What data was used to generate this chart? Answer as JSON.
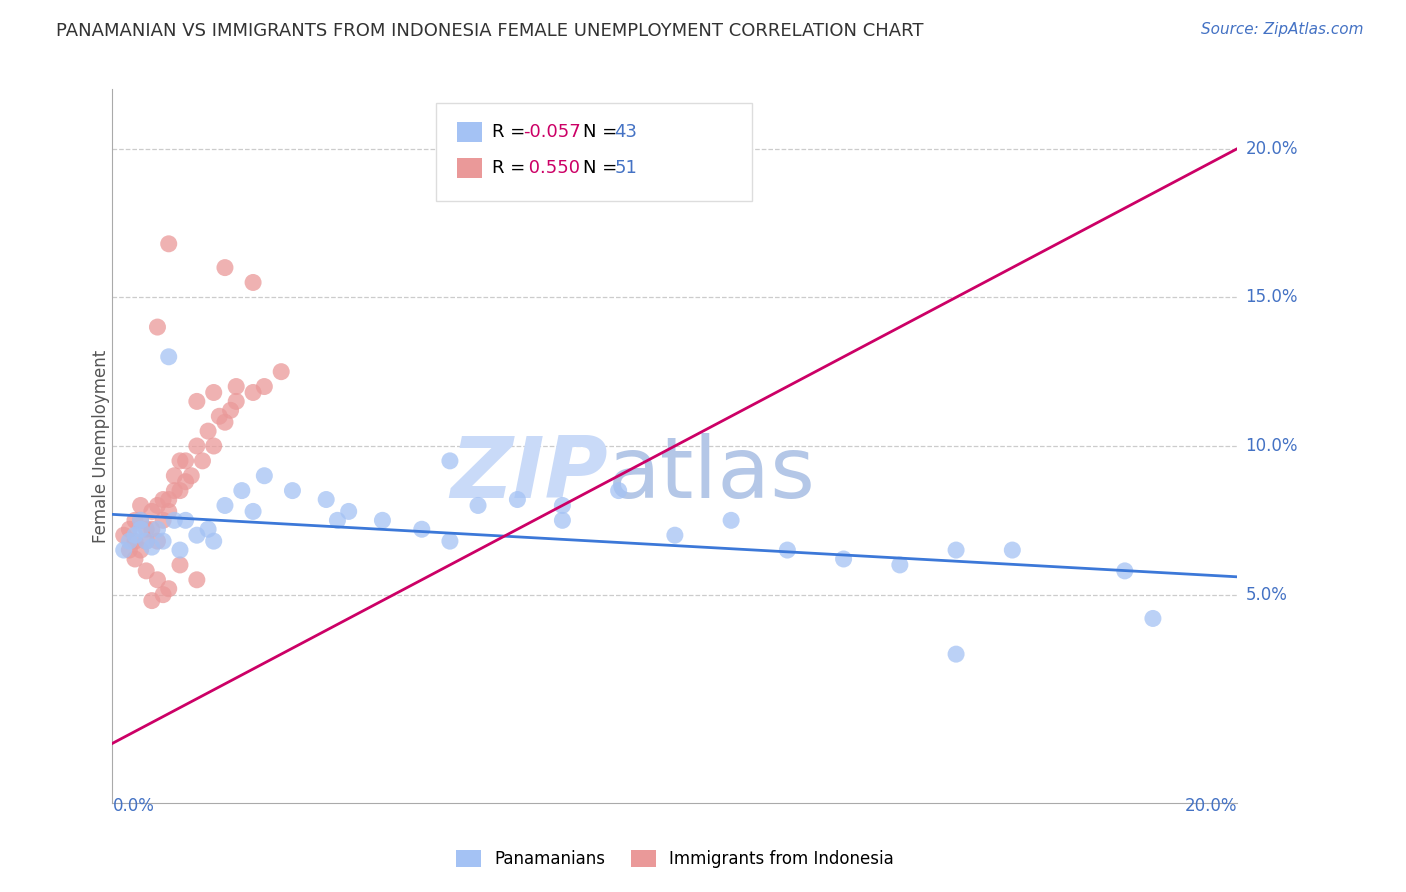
{
  "title": "PANAMANIAN VS IMMIGRANTS FROM INDONESIA FEMALE UNEMPLOYMENT CORRELATION CHART",
  "source": "Source: ZipAtlas.com",
  "ylabel": "Female Unemployment",
  "xlim": [
    0.0,
    0.2
  ],
  "ylim": [
    -0.02,
    0.22
  ],
  "plot_ylim": [
    0.0,
    0.22
  ],
  "y_tick_labels": [
    "5.0%",
    "10.0%",
    "15.0%",
    "20.0%"
  ],
  "y_tick_values": [
    0.05,
    0.1,
    0.15,
    0.2
  ],
  "legend_r_blue": "-0.057",
  "legend_n_blue": "43",
  "legend_r_pink": "0.550",
  "legend_n_pink": "51",
  "blue_color": "#a4c2f4",
  "pink_color": "#ea9999",
  "blue_line_color": "#3c78d8",
  "pink_line_color": "#cc0066",
  "watermark_zip": "ZIP",
  "watermark_atlas": "atlas",
  "watermark_color": "#c9daf8",
  "watermark_atlas_color": "#b4c7e7",
  "background_color": "#ffffff",
  "grid_color": "#cccccc",
  "label_color": "#4472c4",
  "title_color": "#333333",
  "blue_line_start_y": 0.077,
  "blue_line_end_y": 0.056,
  "pink_line_start_y": 0.0,
  "pink_line_end_y": 0.2,
  "blue_scatter_x": [
    0.002,
    0.003,
    0.004,
    0.005,
    0.005,
    0.006,
    0.007,
    0.008,
    0.009,
    0.01,
    0.011,
    0.012,
    0.013,
    0.015,
    0.017,
    0.02,
    0.023,
    0.027,
    0.032,
    0.038,
    0.042,
    0.048,
    0.055,
    0.06,
    0.065,
    0.072,
    0.08,
    0.09,
    0.1,
    0.11,
    0.12,
    0.13,
    0.14,
    0.15,
    0.16,
    0.18,
    0.018,
    0.025,
    0.04,
    0.06,
    0.08,
    0.15,
    0.185
  ],
  "blue_scatter_y": [
    0.065,
    0.068,
    0.07,
    0.075,
    0.072,
    0.068,
    0.066,
    0.072,
    0.068,
    0.13,
    0.075,
    0.065,
    0.075,
    0.07,
    0.072,
    0.08,
    0.085,
    0.09,
    0.085,
    0.082,
    0.078,
    0.075,
    0.072,
    0.095,
    0.08,
    0.082,
    0.075,
    0.085,
    0.07,
    0.075,
    0.065,
    0.062,
    0.06,
    0.065,
    0.065,
    0.058,
    0.068,
    0.078,
    0.075,
    0.068,
    0.08,
    0.03,
    0.042
  ],
  "pink_scatter_x": [
    0.002,
    0.003,
    0.003,
    0.004,
    0.004,
    0.005,
    0.005,
    0.006,
    0.006,
    0.007,
    0.007,
    0.008,
    0.008,
    0.009,
    0.009,
    0.01,
    0.01,
    0.011,
    0.011,
    0.012,
    0.012,
    0.013,
    0.013,
    0.014,
    0.015,
    0.016,
    0.017,
    0.018,
    0.019,
    0.02,
    0.021,
    0.022,
    0.025,
    0.027,
    0.03,
    0.025,
    0.015,
    0.02,
    0.01,
    0.008,
    0.022,
    0.018,
    0.005,
    0.004,
    0.006,
    0.008,
    0.012,
    0.015,
    0.01,
    0.007,
    0.009
  ],
  "pink_scatter_y": [
    0.07,
    0.065,
    0.072,
    0.068,
    0.075,
    0.065,
    0.075,
    0.068,
    0.072,
    0.072,
    0.078,
    0.068,
    0.08,
    0.075,
    0.082,
    0.078,
    0.082,
    0.085,
    0.09,
    0.085,
    0.095,
    0.088,
    0.095,
    0.09,
    0.1,
    0.095,
    0.105,
    0.1,
    0.11,
    0.108,
    0.112,
    0.115,
    0.118,
    0.12,
    0.125,
    0.155,
    0.115,
    0.16,
    0.168,
    0.14,
    0.12,
    0.118,
    0.08,
    0.062,
    0.058,
    0.055,
    0.06,
    0.055,
    0.052,
    0.048,
    0.05
  ]
}
